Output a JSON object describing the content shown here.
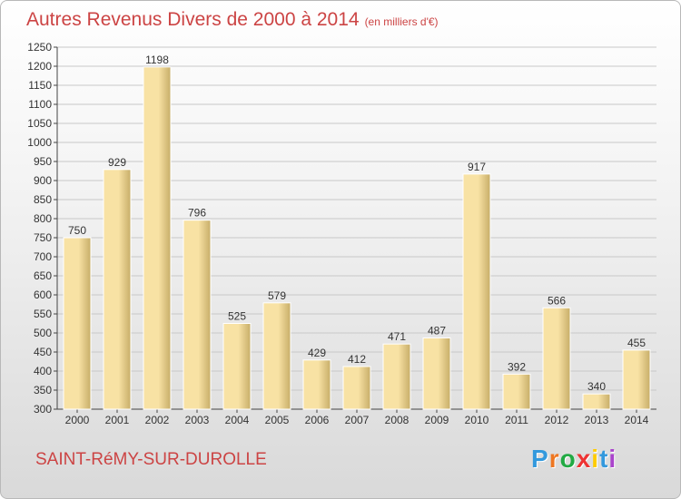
{
  "header": {
    "title": "Autres Revenus Divers de 2000 à 2014",
    "unit": "(en milliers d'€)"
  },
  "footer": {
    "commune": "SAINT-RéMY-SUR-DUROLLE",
    "logo": "Proxiti"
  },
  "logo_colors": [
    "#3399dd",
    "#ee7722",
    "#22aa44",
    "#ee3333",
    "#ffcc00",
    "#3399dd",
    "#aa44cc"
  ],
  "colors": {
    "title": "#cc4444",
    "bar_light": "#f8e2a4",
    "bar_dark": "#c7ad68",
    "grid": "#c8c8c8",
    "axis": "#444444"
  },
  "chart_data": {
    "type": "bar",
    "categories": [
      "2000",
      "2001",
      "2002",
      "2003",
      "2004",
      "2005",
      "2006",
      "2007",
      "2008",
      "2009",
      "2010",
      "2011",
      "2012",
      "2013",
      "2014"
    ],
    "values": [
      750,
      929,
      1198,
      796,
      525,
      579,
      429,
      412,
      471,
      487,
      917,
      392,
      566,
      340,
      455
    ],
    "ylim": [
      300,
      1250
    ],
    "yticks": [
      300,
      350,
      400,
      450,
      500,
      550,
      600,
      650,
      700,
      750,
      800,
      850,
      900,
      950,
      1000,
      1050,
      1100,
      1150,
      1200,
      1250
    ],
    "grid": true
  }
}
